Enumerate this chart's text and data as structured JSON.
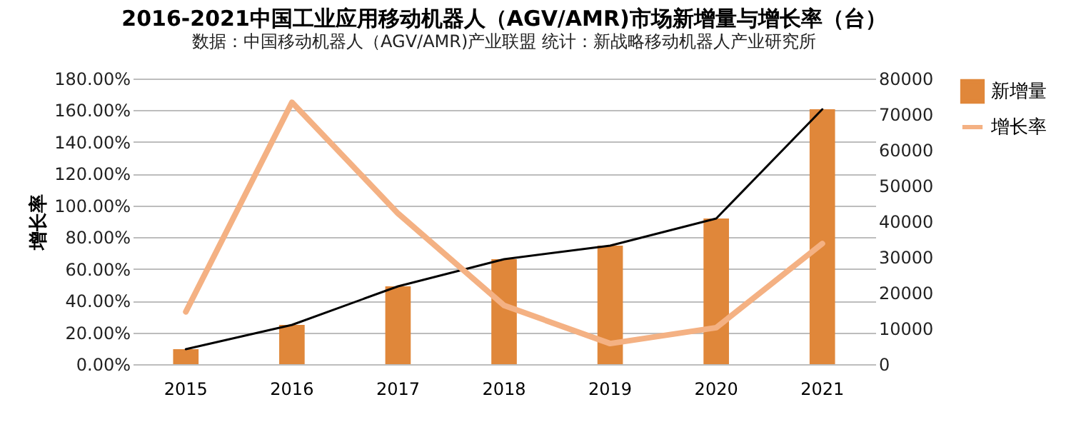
{
  "chart_data": {
    "type": "bar",
    "title": "2016-2021中国工业应用移动机器人（AGV/AMR)市场新增量与增长率（台）",
    "subtitle": "数据：中国移动机器人（AGV/AMR)产业联盟    统计：新战略移动机器人产业研究所",
    "ylabel": "增长率",
    "categories": [
      "2015",
      "2016",
      "2017",
      "2018",
      "2019",
      "2020",
      "2021"
    ],
    "series": [
      {
        "name": "新增量",
        "axis": "y2",
        "color": "#e0873a",
        "values": [
          4200,
          11000,
          21800,
          29400,
          33200,
          40800,
          71400
        ]
      },
      {
        "type": "line",
        "axis": "y2",
        "color": "#000000",
        "values": [
          4200,
          11000,
          21800,
          29400,
          33200,
          40800,
          71400
        ]
      },
      {
        "name": "增长率",
        "type": "line",
        "axis": "y",
        "color": "#f4b183",
        "values": [
          33,
          165,
          95,
          37,
          13,
          23,
          76
        ]
      }
    ],
    "ylim": [
      0,
      180
    ],
    "yticks": [
      {
        "value": 0,
        "label": "0.00%"
      },
      {
        "value": 20,
        "label": "20.00%"
      },
      {
        "value": 40,
        "label": "40.00%"
      },
      {
        "value": 60,
        "label": "60.00%"
      },
      {
        "value": 80,
        "label": "80.00%"
      },
      {
        "value": 100,
        "label": "100.00%"
      },
      {
        "value": 120,
        "label": "120.00%"
      },
      {
        "value": 140,
        "label": "140.00%"
      },
      {
        "value": 160,
        "label": "160.00%"
      },
      {
        "value": 180,
        "label": "180.00%"
      }
    ],
    "y2lim": [
      0,
      80000
    ],
    "y2ticks": [
      0,
      10000,
      20000,
      30000,
      40000,
      50000,
      60000,
      70000,
      80000
    ],
    "grid": true,
    "legend": "right"
  }
}
